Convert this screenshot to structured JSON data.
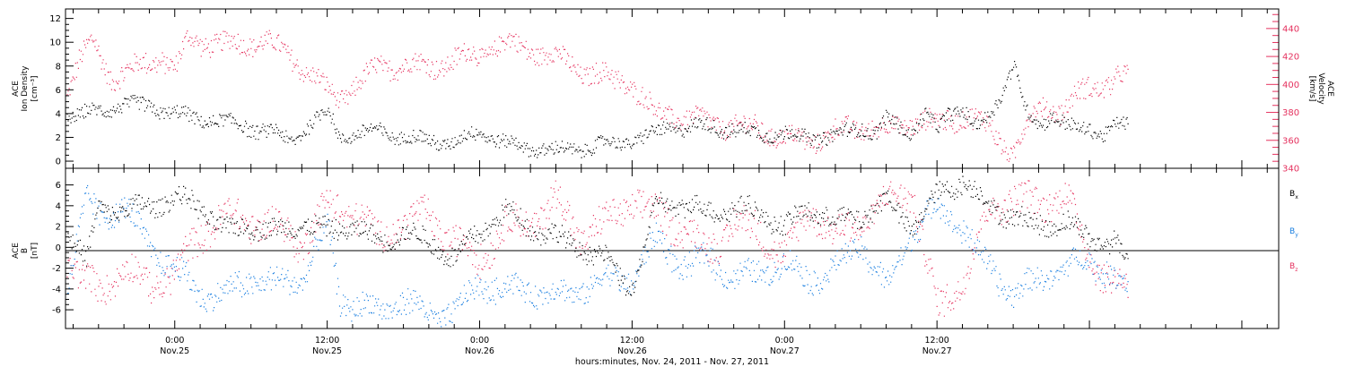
{
  "chart_data": [
    {
      "type": "scatter",
      "title": "",
      "x_range_hours": [
        -8.6,
        86.9
      ],
      "ylabel_left": [
        "ACE",
        "Ion Density",
        "[cm⁻³]"
      ],
      "ylabel_right": [
        "ACE",
        "Velocity",
        "[km/s]"
      ],
      "yticks_left": [
        "0",
        "2",
        "4",
        "6",
        "8",
        "10",
        "12"
      ],
      "yticks_right": [
        "340",
        "360",
        "380",
        "400",
        "420",
        "440"
      ],
      "ylim_left": [
        -0.6,
        12.8
      ],
      "ylim_right": [
        340,
        454
      ],
      "colors": {
        "density": "#000000",
        "velocity": "#e5325f"
      },
      "series": [
        {
          "name": "Ion Density",
          "axis": "left",
          "color": "#000000",
          "x": [
            -8.5,
            -7,
            -6,
            -4,
            -2,
            0,
            2,
            4,
            6,
            8,
            9,
            10,
            11,
            12,
            13,
            14,
            16,
            18,
            20,
            22,
            24,
            26,
            28,
            30,
            32,
            34,
            36,
            37,
            38,
            39,
            40,
            42,
            44,
            46,
            48,
            50,
            52,
            54,
            55,
            56,
            57,
            58,
            59,
            60,
            61,
            62,
            63,
            64,
            65,
            66,
            67,
            68,
            69,
            70,
            71,
            72,
            73,
            74,
            75
          ],
          "values": [
            3.8,
            4.0,
            4.3,
            4.8,
            4.6,
            4.0,
            3.6,
            3.3,
            2.8,
            2.4,
            1.6,
            2.6,
            3.5,
            4.2,
            2.1,
            2.3,
            2.6,
            2.0,
            1.8,
            1.5,
            2.6,
            1.5,
            1.2,
            0.9,
            1.1,
            1.5,
            1.8,
            2.1,
            2.4,
            3.0,
            2.8,
            3.0,
            2.6,
            2.4,
            2.3,
            2.0,
            2.1,
            3.0,
            2.2,
            3.5,
            2.9,
            2.5,
            4.0,
            2.6,
            4.2,
            4.5,
            2.8,
            3.5,
            5.7,
            8.4,
            4.0,
            3.0,
            4.0,
            3.3,
            2.5,
            2.8,
            2.4,
            3.0,
            2.9
          ]
        },
        {
          "name": "Velocity",
          "axis": "right",
          "color": "#e5325f",
          "x": [
            -8.5,
            -7.5,
            -6.5,
            -5,
            -3,
            -1,
            0,
            1,
            3,
            5,
            7,
            9,
            11,
            12,
            13,
            14,
            16,
            18,
            20,
            22,
            24,
            26,
            28,
            30,
            32,
            34,
            36,
            37,
            38,
            39,
            40,
            42,
            44,
            46,
            48,
            50,
            52,
            54,
            56,
            58,
            60,
            62,
            64,
            65,
            66,
            67,
            68,
            69,
            70,
            71,
            72,
            73,
            74,
            75
          ],
          "values": [
            395,
            418,
            430,
            405,
            412,
            420,
            410,
            432,
            430,
            428,
            432,
            420,
            405,
            395,
            390,
            398,
            412,
            415,
            412,
            418,
            422,
            430,
            425,
            420,
            410,
            405,
            400,
            388,
            378,
            380,
            376,
            374,
            370,
            368,
            362,
            360,
            366,
            370,
            368,
            374,
            372,
            378,
            370,
            360,
            350,
            370,
            385,
            385,
            380,
            392,
            400,
            400,
            402,
            406
          ]
        }
      ]
    },
    {
      "type": "scatter",
      "title": "",
      "x_range_hours": [
        -8.6,
        86.9
      ],
      "ylabel_left": [
        "ACE",
        "B",
        "[nT]"
      ],
      "yticks_left": [
        "-6",
        "-4",
        "-2",
        "0",
        "2",
        "4",
        "6"
      ],
      "ylim_left": [
        -7.8,
        7.6
      ],
      "legend_position": "right",
      "legend": [
        {
          "label": "B",
          "sub": "x",
          "color": "#000000"
        },
        {
          "label": "B",
          "sub": "y",
          "color": "#1a7fe0"
        },
        {
          "label": "B",
          "sub": "z",
          "color": "#e5325f"
        }
      ],
      "series": [
        {
          "name": "Bx",
          "color": "#000000",
          "x": [
            -8.5,
            -7,
            -6,
            -4,
            -2,
            0,
            2,
            4,
            6,
            8,
            10,
            12,
            14,
            16,
            18,
            20,
            22,
            24,
            26,
            28,
            30,
            32,
            34,
            36,
            38,
            40,
            42,
            44,
            46,
            48,
            50,
            52,
            54,
            56,
            58,
            60,
            62,
            64,
            66,
            68,
            70,
            72,
            74,
            75
          ],
          "values": [
            2.0,
            -1.5,
            4.0,
            3.5,
            4.0,
            4.8,
            4.0,
            1.5,
            2.2,
            1.5,
            2.5,
            1.5,
            2.2,
            0.5,
            1.5,
            0.5,
            -1.0,
            1.5,
            3.5,
            2.0,
            1.0,
            0.0,
            -1.2,
            -4.0,
            4.5,
            4.0,
            3.5,
            3.8,
            3.5,
            2.0,
            3.8,
            2.5,
            3.0,
            4.5,
            2.0,
            5.0,
            6.5,
            4.0,
            3.0,
            2.0,
            2.5,
            1.0,
            0.5,
            -1.5
          ]
        },
        {
          "name": "By",
          "color": "#1a7fe0",
          "x": [
            -8.5,
            -7,
            -6,
            -4,
            -2,
            0,
            2,
            4,
            6,
            8,
            10,
            12,
            13,
            14,
            16,
            18,
            20,
            22,
            24,
            26,
            28,
            30,
            32,
            34,
            36,
            37,
            38,
            40,
            42,
            44,
            46,
            48,
            50,
            52,
            54,
            56,
            58,
            60,
            62,
            64,
            66,
            68,
            70,
            72,
            74,
            75
          ],
          "values": [
            -3.5,
            4.5,
            3.0,
            4.0,
            0.0,
            -2.0,
            -4.5,
            -4.5,
            -3.0,
            -3.5,
            -3.0,
            2.0,
            -5.0,
            -5.5,
            -6.0,
            -5.0,
            -6.5,
            -6.2,
            -3.5,
            -4.0,
            -4.0,
            -4.5,
            -4.0,
            -3.0,
            -3.0,
            -1.0,
            1.0,
            -2.0,
            -1.0,
            -3.0,
            -2.5,
            -1.5,
            -3.0,
            -2.0,
            0.5,
            -4.0,
            1.5,
            4.0,
            2.0,
            -2.0,
            -4.5,
            -3.0,
            -2.0,
            -1.0,
            -3.0,
            -4.0
          ]
        },
        {
          "name": "Bz",
          "color": "#e5325f",
          "x": [
            -8.5,
            -7,
            -6,
            -4,
            -2,
            0,
            2,
            4,
            6,
            8,
            10,
            12,
            14,
            16,
            18,
            20,
            22,
            24,
            26,
            28,
            30,
            32,
            34,
            36,
            38,
            40,
            42,
            44,
            46,
            48,
            50,
            52,
            54,
            56,
            58,
            60,
            62,
            64,
            66,
            68,
            70,
            72,
            74,
            75
          ],
          "values": [
            -1.0,
            -3.5,
            -4.0,
            -2.0,
            -3.5,
            -2.5,
            1.5,
            3.0,
            2.5,
            2.0,
            0.5,
            4.0,
            3.5,
            1.0,
            2.5,
            3.0,
            0.5,
            -1.0,
            2.0,
            2.5,
            4.5,
            1.0,
            2.5,
            4.5,
            3.0,
            2.0,
            -0.5,
            2.5,
            1.5,
            -1.0,
            4.0,
            1.0,
            2.5,
            4.5,
            5.5,
            -6.0,
            -3.0,
            3.5,
            5.0,
            4.0,
            5.5,
            -1.0,
            -3.5,
            -4.0
          ]
        }
      ],
      "zero_line": true
    }
  ],
  "x_axis": {
    "ticks": [
      {
        "hour": 0,
        "time": "0:00",
        "date": "Nov.25"
      },
      {
        "hour": 12,
        "time": "12:00",
        "date": "Nov.25"
      },
      {
        "hour": 24,
        "time": "0:00",
        "date": "Nov.26"
      },
      {
        "hour": 36,
        "time": "12:00",
        "date": "Nov.26"
      },
      {
        "hour": 48,
        "time": "0:00",
        "date": "Nov.27"
      },
      {
        "hour": 60,
        "time": "12:00",
        "date": "Nov.27"
      }
    ],
    "minor_step_hours": 2,
    "label": "hours:minutes, Nov. 24, 2011 - Nov. 27, 2011"
  }
}
